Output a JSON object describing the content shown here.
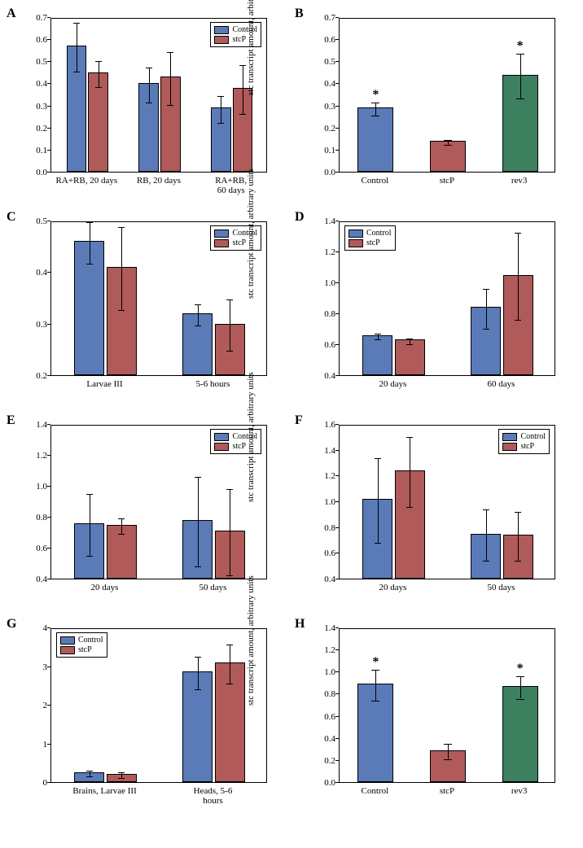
{
  "colors": {
    "control": "#5b7bb8",
    "stcp": "#b05a5a",
    "rev3": "#3d8060",
    "axis": "#000000",
    "bg": "#ffffff"
  },
  "y_title": "stc transcript amount, arbitrary units",
  "legend_labels": {
    "control": "Control",
    "stcp": "stcP",
    "rev3": "rev3"
  },
  "panels": [
    {
      "id": "A",
      "ylim": [
        0,
        0.7
      ],
      "ytick_step": 0.1,
      "decimals": 1,
      "legend_pos": "top-right",
      "series": [
        "control",
        "stcp"
      ],
      "categories": [
        "RA+RB, 20 days",
        "RB, 20 days",
        "RA+RB, 60 days"
      ],
      "data": {
        "control": {
          "values": [
            0.57,
            0.4,
            0.29
          ],
          "err": [
            0.11,
            0.08,
            0.06
          ]
        },
        "stcp": {
          "values": [
            0.45,
            0.43,
            0.38
          ],
          "err": [
            0.06,
            0.12,
            0.11
          ]
        }
      }
    },
    {
      "id": "B",
      "ylim": [
        0,
        0.7
      ],
      "ytick_step": 0.1,
      "decimals": 1,
      "series_single": true,
      "categories": [
        "Control",
        "stcP",
        "rev3"
      ],
      "series": [
        "control",
        "stcp",
        "rev3"
      ],
      "data": {
        "values": [
          0.29,
          0.14,
          0.44
        ],
        "err": [
          0.03,
          0.01,
          0.1
        ]
      },
      "sig": [
        true,
        false,
        true
      ]
    },
    {
      "id": "C",
      "ylim": [
        0.2,
        0.5
      ],
      "ytick_step": 0.1,
      "decimals": 1,
      "legend_pos": "top-right",
      "series": [
        "control",
        "stcp"
      ],
      "categories": [
        "Larvae III",
        "5-6 hours"
      ],
      "data": {
        "control": {
          "values": [
            0.46,
            0.32
          ],
          "err": [
            0.04,
            0.02
          ]
        },
        "stcp": {
          "values": [
            0.41,
            0.3
          ],
          "err": [
            0.08,
            0.05
          ]
        }
      }
    },
    {
      "id": "D",
      "ylim": [
        0.4,
        1.4
      ],
      "ytick_step": 0.2,
      "decimals": 1,
      "legend_pos": "top-left",
      "series": [
        "control",
        "stcp"
      ],
      "categories": [
        "20 days",
        "60 days"
      ],
      "data": {
        "control": {
          "values": [
            0.66,
            0.84
          ],
          "err": [
            0.02,
            0.13
          ]
        },
        "stcp": {
          "values": [
            0.63,
            1.05
          ],
          "err": [
            0.02,
            0.28
          ]
        }
      }
    },
    {
      "id": "E",
      "ylim": [
        0.4,
        1.4
      ],
      "ytick_step": 0.2,
      "decimals": 1,
      "legend_pos": "top-right",
      "series": [
        "control",
        "stcp"
      ],
      "categories": [
        "20 days",
        "50 days"
      ],
      "data": {
        "control": {
          "values": [
            0.76,
            0.78
          ],
          "err": [
            0.2,
            0.29
          ]
        },
        "stcp": {
          "values": [
            0.75,
            0.71
          ],
          "err": [
            0.05,
            0.28
          ]
        }
      }
    },
    {
      "id": "F",
      "ylim": [
        0.4,
        1.6
      ],
      "ytick_step": 0.2,
      "decimals": 1,
      "legend_pos": "top-right",
      "series": [
        "control",
        "stcp"
      ],
      "categories": [
        "20 days",
        "50 days"
      ],
      "data": {
        "control": {
          "values": [
            1.02,
            0.75
          ],
          "err": [
            0.33,
            0.2
          ]
        },
        "stcp": {
          "values": [
            1.24,
            0.74
          ],
          "err": [
            0.27,
            0.19
          ]
        }
      }
    },
    {
      "id": "G",
      "ylim": [
        0,
        4
      ],
      "ytick_step": 1,
      "decimals": 0,
      "legend_pos": "top-left",
      "series": [
        "control",
        "stcp"
      ],
      "categories": [
        "Brains, Larvae III",
        "Heads, 5-6 hours"
      ],
      "data": {
        "control": {
          "values": [
            0.26,
            2.87
          ],
          "err": [
            0.08,
            0.42
          ]
        },
        "stcp": {
          "values": [
            0.22,
            3.1
          ],
          "err": [
            0.08,
            0.5
          ]
        }
      }
    },
    {
      "id": "H",
      "ylim": [
        0,
        1.4
      ],
      "ytick_step": 0.2,
      "decimals": 1,
      "series_single": true,
      "categories": [
        "Control",
        "stcP",
        "rev3"
      ],
      "series": [
        "control",
        "stcp",
        "rev3"
      ],
      "data": {
        "values": [
          0.89,
          0.29,
          0.87
        ],
        "err": [
          0.14,
          0.07,
          0.1
        ]
      },
      "sig": [
        true,
        false,
        true
      ]
    }
  ]
}
